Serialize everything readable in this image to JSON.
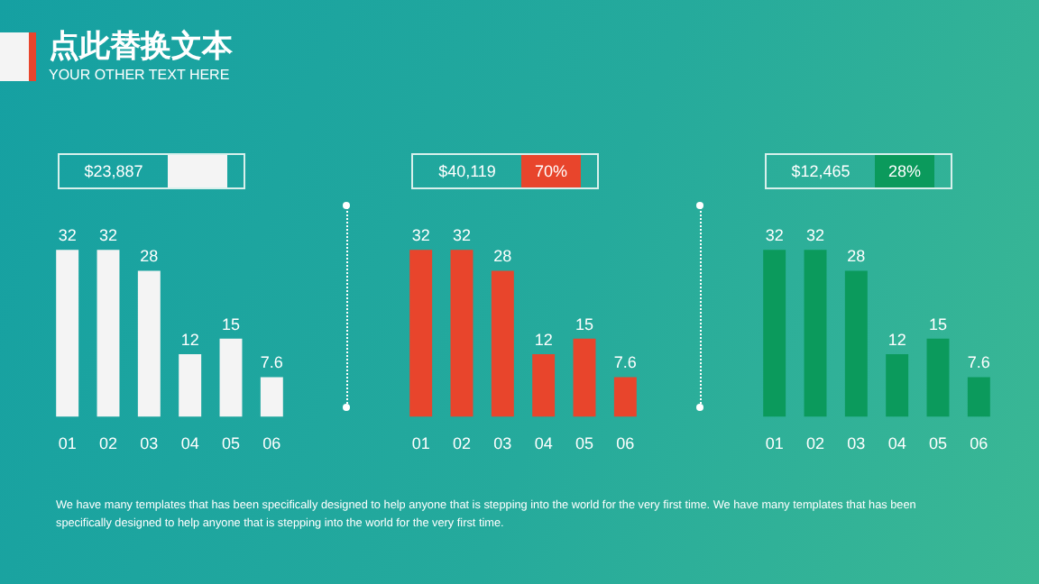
{
  "chart_data": [
    {
      "type": "bar",
      "title": "点此替换文本",
      "subtitle": "YOUR OTHER TEXT HERE",
      "categories": [
        "01",
        "02",
        "03",
        "04",
        "05",
        "06"
      ],
      "values": [
        32,
        32,
        28,
        12,
        15,
        7.6
      ],
      "color": "#f4f4f4",
      "data_labels": true,
      "annotations": [
        "$23,887",
        "We have many templates that has been specifically designed to help anyone that is stepping into the world for the very first time. We have many templates that has been specifically designed to help anyone that is stepping into the world for the very first time."
      ]
    },
    {
      "type": "bar",
      "categories": [
        "01",
        "02",
        "03",
        "04",
        "05",
        "06"
      ],
      "values": [
        32,
        32,
        28,
        12,
        15,
        7.6
      ],
      "color": "#e8452c",
      "data_labels": true,
      "annotations": [
        "$40,119",
        "70%"
      ]
    },
    {
      "type": "bar",
      "categories": [
        "01",
        "02",
        "03",
        "04",
        "05",
        "06"
      ],
      "values": [
        32,
        32,
        28,
        12,
        15,
        7.6
      ],
      "color": "#0b9a5c",
      "data_labels": true,
      "annotations": [
        "$12,465",
        "28%"
      ]
    }
  ]
}
